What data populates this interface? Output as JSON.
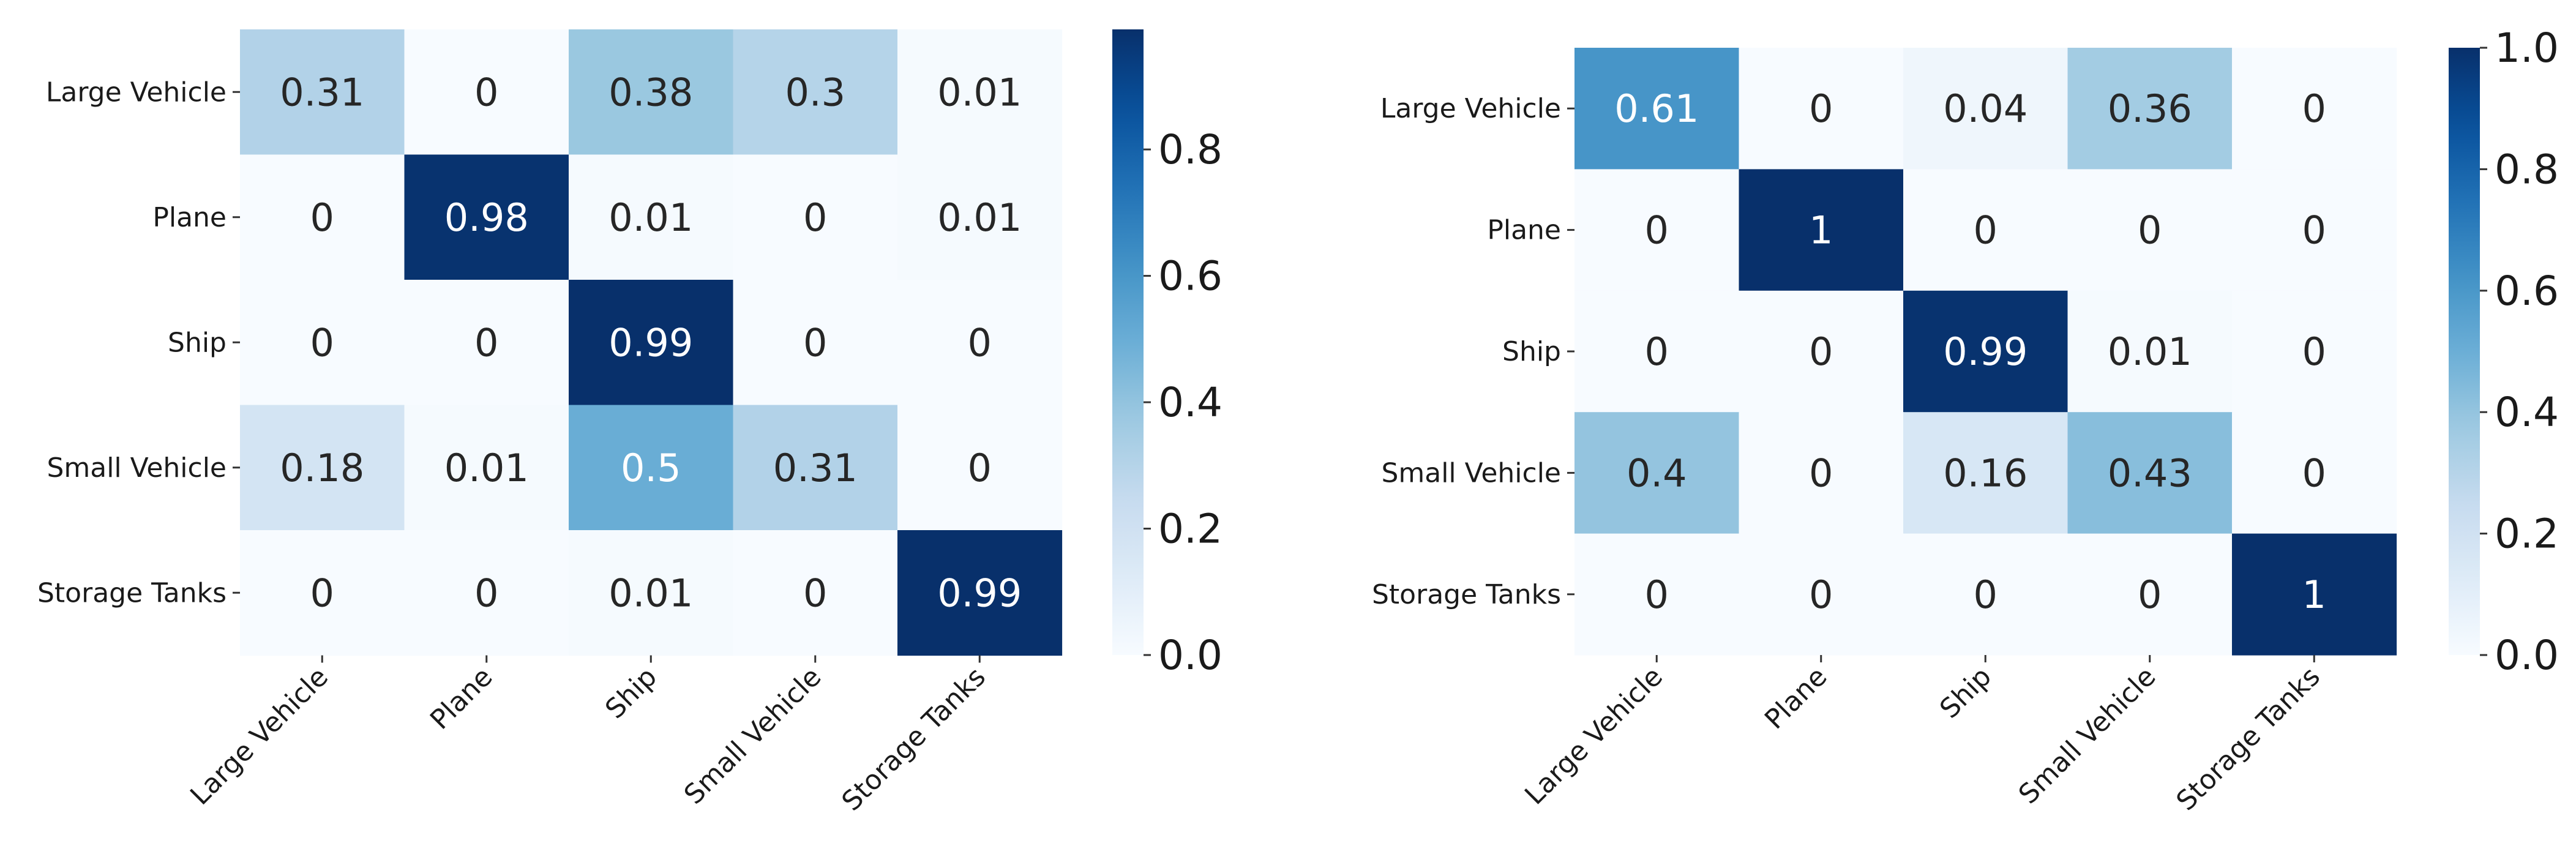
{
  "chart_data": [
    {
      "type": "heatmap",
      "title": "",
      "xlabel": "",
      "ylabel": "",
      "x_categories": [
        "Large Vehicle",
        "Plane",
        "Ship",
        "Small Vehicle",
        "Storage Tanks"
      ],
      "y_categories": [
        "Large Vehicle",
        "Plane",
        "Ship",
        "Small Vehicle",
        "Storage Tanks"
      ],
      "values": [
        [
          0.31,
          0,
          0.38,
          0.3,
          0.01
        ],
        [
          0,
          0.98,
          0.01,
          0,
          0.01
        ],
        [
          0,
          0,
          0.99,
          0,
          0
        ],
        [
          0.18,
          0.01,
          0.5,
          0.31,
          0
        ],
        [
          0,
          0,
          0.01,
          0,
          0.99
        ]
      ],
      "value_labels": [
        [
          "0.31",
          "0",
          "0.38",
          "0.3",
          "0.01"
        ],
        [
          "0",
          "0.98",
          "0.01",
          "0",
          "0.01"
        ],
        [
          "0",
          "0",
          "0.99",
          "0",
          "0"
        ],
        [
          "0.18",
          "0.01",
          "0.5",
          "0.31",
          "0"
        ],
        [
          "0",
          "0",
          "0.01",
          "0",
          "0.99"
        ]
      ],
      "colormap": "Blues",
      "colorbar": {
        "vmin": 0,
        "vmax": 0.99,
        "ticks": [
          0.0,
          0.2,
          0.4,
          0.6,
          0.8
        ],
        "tick_labels": [
          "0.0",
          "0.2",
          "0.4",
          "0.6",
          "0.8"
        ]
      }
    },
    {
      "type": "heatmap",
      "title": "",
      "xlabel": "",
      "ylabel": "",
      "x_categories": [
        "Large Vehicle",
        "Plane",
        "Ship",
        "Small Vehicle",
        "Storage Tanks"
      ],
      "y_categories": [
        "Large Vehicle",
        "Plane",
        "Ship",
        "Small Vehicle",
        "Storage Tanks"
      ],
      "values": [
        [
          0.61,
          0,
          0.04,
          0.36,
          0
        ],
        [
          0,
          1,
          0,
          0,
          0
        ],
        [
          0,
          0,
          0.99,
          0.01,
          0
        ],
        [
          0.4,
          0,
          0.16,
          0.43,
          0
        ],
        [
          0,
          0,
          0,
          0,
          1
        ]
      ],
      "value_labels": [
        [
          "0.61",
          "0",
          "0.04",
          "0.36",
          "0"
        ],
        [
          "0",
          "1",
          "0",
          "0",
          "0"
        ],
        [
          "0",
          "0",
          "0.99",
          "0.01",
          "0"
        ],
        [
          "0.4",
          "0",
          "0.16",
          "0.43",
          "0"
        ],
        [
          "0",
          "0",
          "0",
          "0",
          "1"
        ]
      ],
      "colormap": "Blues",
      "colorbar": {
        "vmin": 0,
        "vmax": 1.0,
        "ticks": [
          0.0,
          0.2,
          0.4,
          0.6,
          0.8,
          1.0
        ],
        "tick_labels": [
          "0.0",
          "0.2",
          "0.4",
          "0.6",
          "0.8",
          "1.0"
        ]
      }
    }
  ]
}
